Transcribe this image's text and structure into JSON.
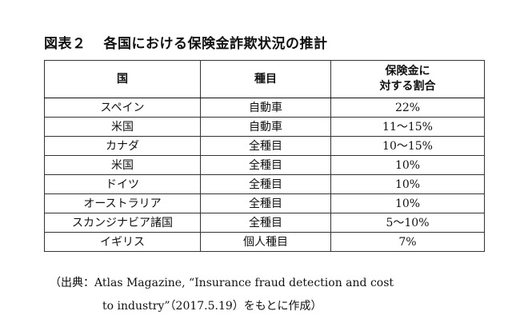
{
  "title": {
    "label": "図表２",
    "text": "各国における保険金詐欺状況の推計"
  },
  "table": {
    "headers": {
      "country": "国",
      "type": "種目",
      "ratio_line1": "保険金に",
      "ratio_line2": "対する割合"
    },
    "rows": [
      {
        "country": "スペイン",
        "type": "自動車",
        "ratio": "22%"
      },
      {
        "country": "米国",
        "type": "自動車",
        "ratio": "11～15%"
      },
      {
        "country": "カナダ",
        "type": "全種目",
        "ratio": "10～15%"
      },
      {
        "country": "米国",
        "type": "全種目",
        "ratio": "10%"
      },
      {
        "country": "ドイツ",
        "type": "全種目",
        "ratio": "10%"
      },
      {
        "country": "オーストラリア",
        "type": "全種目",
        "ratio": "10%"
      },
      {
        "country": "スカンジナビア諸国",
        "type": "全種目",
        "ratio": "5～10%"
      },
      {
        "country": "イギリス",
        "type": "個人種目",
        "ratio": "7%"
      }
    ]
  },
  "source": {
    "line1": "（出典：Atlas Magazine, “Insurance fraud detection and cost",
    "line2": "to industry”（2017.5.19）をもとに作成）"
  }
}
